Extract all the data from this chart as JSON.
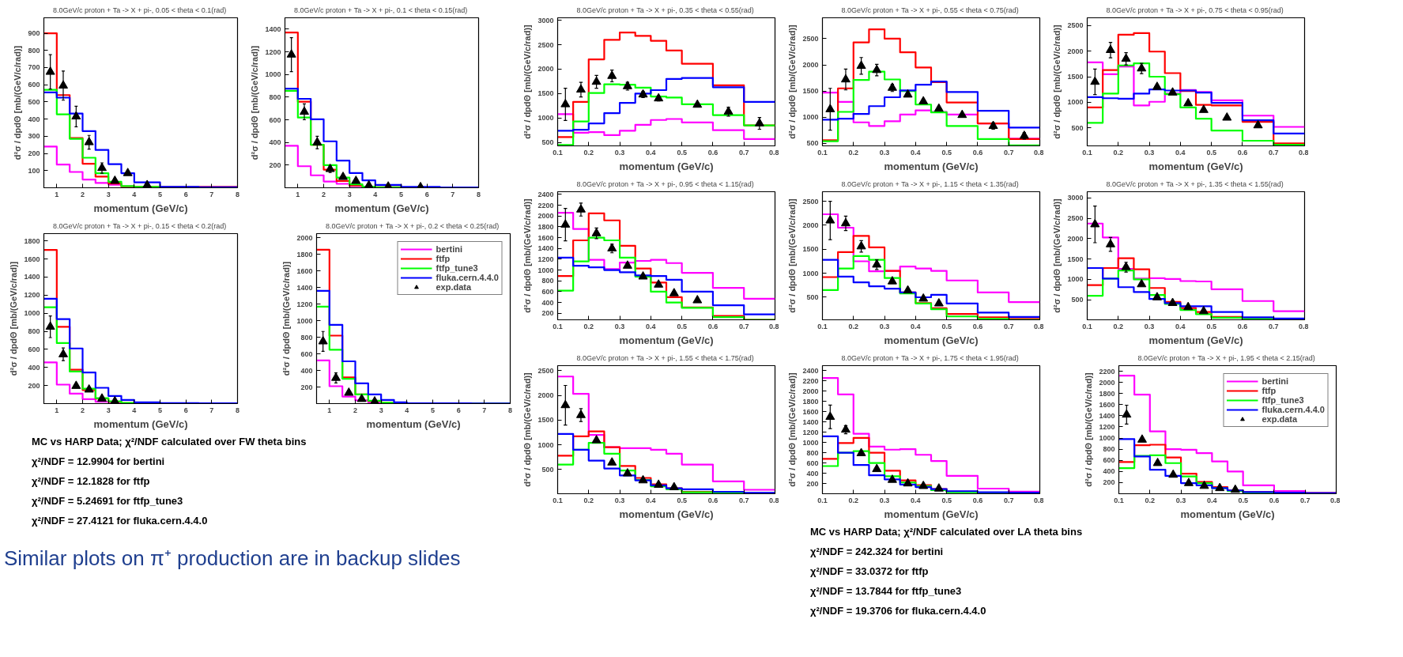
{
  "chart_data": [
    {
      "type": "histogram",
      "title": "8.0GeV/c  proton + Ta -> X + pi-, 0.05 < theta < 0.1(rad)",
      "xlabel": "momentum (GeV/c)",
      "ylabel": "d²σ / dpdΘ [mb/(GeV/c/rad)]",
      "bins": [
        0.5,
        1,
        1.5,
        2,
        2.5,
        3,
        3.5,
        4,
        5,
        6.5,
        8
      ],
      "xlim": [
        0.5,
        8
      ],
      "xticks": [
        1,
        2,
        3,
        4,
        5,
        6,
        7,
        8
      ],
      "ylim": [
        0,
        990
      ],
      "yticks": [
        100,
        200,
        300,
        400,
        500,
        600,
        700,
        800,
        900
      ],
      "series": [
        {
          "color": "#ff00ff",
          "values": [
            240,
            135,
            92,
            48,
            28,
            18,
            8,
            5,
            3,
            2
          ]
        },
        {
          "color": "#ff0000",
          "values": [
            900,
            540,
            290,
            140,
            65,
            25,
            8,
            5,
            5,
            5
          ]
        },
        {
          "color": "#00ff00",
          "values": [
            570,
            428,
            285,
            175,
            85,
            35,
            10,
            5,
            3,
            2
          ]
        },
        {
          "color": "#0000ff",
          "values": [
            555,
            525,
            432,
            330,
            220,
            138,
            85,
            32,
            5,
            3
          ]
        },
        {
          "type": "scatter",
          "marker": "triangle",
          "color": "#000000",
          "x": [
            0.75,
            1.25,
            1.75,
            2.25,
            2.75,
            3.25,
            3.75,
            4.5
          ],
          "values": [
            675,
            595,
            415,
            265,
            115,
            40,
            85,
            15
          ],
          "errors": [
            100,
            85,
            60,
            40,
            30,
            null,
            null,
            null
          ]
        }
      ]
    },
    {
      "type": "histogram",
      "title": "8.0GeV/c  proton + Ta -> X + pi-, 0.1 < theta < 0.15(rad)",
      "xlabel": "momentum (GeV/c)",
      "ylabel": "d²σ / dpdΘ [mb/(GeV/c/rad)]",
      "bins": [
        0.5,
        1,
        1.5,
        2,
        2.5,
        3,
        3.5,
        4,
        5,
        6.5,
        8
      ],
      "xlim": [
        0.5,
        8
      ],
      "xticks": [
        1,
        2,
        3,
        4,
        5,
        6,
        7,
        8
      ],
      "ylim": [
        0,
        1500
      ],
      "yticks": [
        200,
        400,
        600,
        800,
        1000,
        1200,
        1400
      ],
      "series": [
        {
          "color": "#ff00ff",
          "values": [
            370,
            190,
            110,
            55,
            35,
            15,
            8,
            5,
            3,
            2
          ]
        },
        {
          "color": "#ff0000",
          "values": [
            1370,
            760,
            380,
            160,
            60,
            20,
            8,
            5,
            3,
            2
          ]
        },
        {
          "color": "#00ff00",
          "values": [
            855,
            620,
            380,
            200,
            90,
            30,
            10,
            5,
            3,
            2
          ]
        },
        {
          "color": "#0000ff",
          "values": [
            875,
            785,
            605,
            410,
            240,
            130,
            65,
            25,
            8,
            3
          ]
        },
        {
          "type": "scatter",
          "marker": "triangle",
          "color": "#000000",
          "x": [
            0.75,
            1.25,
            1.75,
            2.25,
            2.75,
            3.25,
            3.75,
            4.5,
            5.75
          ],
          "values": [
            1175,
            670,
            400,
            165,
            95,
            60,
            20,
            10,
            5
          ],
          "errors": [
            150,
            70,
            55,
            30,
            null,
            null,
            null,
            null,
            null
          ]
        }
      ]
    },
    {
      "type": "histogram",
      "title": "8.0GeV/c  proton + Ta -> X + pi-, 0.15 < theta < 0.2(rad)",
      "xlabel": "momentum (GeV/c)",
      "ylabel": "d²σ / dpdΘ [mb/(GeV/c/rad)]",
      "bins": [
        0.5,
        1,
        1.5,
        2,
        2.5,
        3,
        3.5,
        4,
        5,
        6.5,
        8
      ],
      "xlim": [
        0.5,
        8
      ],
      "xticks": [
        1,
        2,
        3,
        4,
        5,
        6,
        7,
        8
      ],
      "ylim": [
        0,
        1880
      ],
      "yticks": [
        200,
        400,
        600,
        800,
        1000,
        1200,
        1400,
        1600,
        1800
      ],
      "series": [
        {
          "color": "#ff00ff",
          "values": [
            455,
            210,
            110,
            50,
            20,
            10,
            5,
            3,
            2,
            2
          ]
        },
        {
          "color": "#ff0000",
          "values": [
            1700,
            850,
            375,
            150,
            55,
            20,
            5,
            3,
            2,
            2
          ]
        },
        {
          "color": "#00ff00",
          "values": [
            1065,
            670,
            355,
            165,
            60,
            25,
            8,
            3,
            2,
            2
          ]
        },
        {
          "color": "#0000ff",
          "values": [
            1160,
            935,
            610,
            345,
            175,
            85,
            40,
            15,
            5,
            3
          ]
        },
        {
          "type": "scatter",
          "marker": "triangle",
          "color": "#000000",
          "x": [
            0.75,
            1.25,
            1.75,
            2.25,
            2.75,
            3.25
          ],
          "values": [
            850,
            545,
            195,
            155,
            55,
            25
          ],
          "errors": [
            120,
            70,
            null,
            null,
            null,
            null
          ]
        }
      ],
      "annotations": [
        "MC vs HARP Data; χ²/NDF calculated over FW theta bins",
        "χ²/NDF = 12.9904 for bertini",
        "χ²/NDF = 12.1828 for ftfp",
        "χ²/NDF = 5.24691 for ftfp_tune3",
        "χ²/NDF = 27.4121 for fluka.cern.4.4.0",
        "Similar plots on π⁺ production are in backup slides"
      ]
    },
    {
      "type": "histogram",
      "title": "8.0GeV/c  proton + Ta -> X + pi-, 0.2 < theta < 0.25(rad)",
      "xlabel": "momentum (GeV/c)",
      "ylabel": "d²σ / dpdΘ [mb/(GeV/c/rad)]",
      "bins": [
        0.5,
        1,
        1.5,
        2,
        2.5,
        3,
        3.5,
        4,
        5,
        6.5,
        8
      ],
      "xlim": [
        0.5,
        8
      ],
      "xticks": [
        1,
        2,
        3,
        4,
        5,
        6,
        7,
        8
      ],
      "ylim": [
        0,
        2050
      ],
      "yticks": [
        200,
        400,
        600,
        800,
        1000,
        1200,
        1400,
        1600,
        1800,
        2000
      ],
      "legend": "top right",
      "series": [
        {
          "name": "bertini",
          "color": "#ff00ff",
          "values": [
            520,
            210,
            85,
            40,
            15,
            8,
            5,
            3,
            2,
            2
          ]
        },
        {
          "name": "ftfp",
          "color": "#ff0000",
          "values": [
            1855,
            820,
            315,
            110,
            30,
            10,
            5,
            3,
            2,
            2
          ]
        },
        {
          "name": "ftfp_tune3",
          "color": "#00ff00",
          "values": [
            1170,
            650,
            300,
            110,
            35,
            12,
            5,
            3,
            2,
            2
          ]
        },
        {
          "name": "fluka.cern.4.4.0",
          "color": "#0000ff",
          "values": [
            1360,
            950,
            510,
            245,
            110,
            45,
            15,
            5,
            3,
            2
          ]
        },
        {
          "name": "exp.data",
          "type": "scatter",
          "marker": "triangle",
          "color": "#000000",
          "x": [
            0.75,
            1.25,
            1.75,
            2.25,
            2.75
          ],
          "values": [
            750,
            310,
            130,
            55,
            25
          ],
          "errors": [
            120,
            60,
            null,
            null,
            null
          ]
        }
      ]
    },
    {
      "type": "histogram",
      "title": "8.0GeV/c  proton + Ta -> X + pi-, 0.35 < theta < 0.55(rad)",
      "xlabel": "momentum (GeV/c)",
      "ylabel": "d²σ / dpdΘ [mb/(GeV/c/rad)]",
      "bins": [
        0.1,
        0.15,
        0.2,
        0.25,
        0.3,
        0.35,
        0.4,
        0.45,
        0.5,
        0.6,
        0.7,
        0.8
      ],
      "xlim": [
        0.1,
        0.8
      ],
      "xticks": [
        0.1,
        0.2,
        0.3,
        0.4,
        0.5,
        0.6,
        0.7,
        0.8
      ],
      "ylim": [
        430,
        3050
      ],
      "yticks": [
        500,
        1000,
        1500,
        2000,
        2500,
        3000
      ],
      "series": [
        {
          "color": "#ff00ff",
          "values": [
            1080,
            700,
            710,
            650,
            740,
            860,
            960,
            980,
            910,
            750,
            570
          ]
        },
        {
          "color": "#ff0000",
          "values": [
            610,
            1330,
            2200,
            2600,
            2750,
            2680,
            2580,
            2380,
            2110,
            1670,
            850
          ]
        },
        {
          "color": "#00ff00",
          "values": [
            450,
            930,
            1510,
            1690,
            1680,
            1620,
            1440,
            1420,
            1280,
            1060,
            850
          ]
        },
        {
          "color": "#0000ff",
          "values": [
            740,
            760,
            890,
            1100,
            1310,
            1500,
            1570,
            1800,
            1820,
            1630,
            1330
          ]
        },
        {
          "type": "scatter",
          "marker": "triangle",
          "color": "#000000",
          "x": [
            0.125,
            0.175,
            0.225,
            0.275,
            0.325,
            0.375,
            0.425,
            0.475,
            0.55,
            0.65,
            0.75
          ],
          "values": [
            1280,
            1580,
            1740,
            1860,
            1650,
            1480,
            1400,
            null,
            1270,
            1130,
            890
          ],
          "errors": [
            330,
            150,
            130,
            120,
            80,
            60,
            50,
            null,
            null,
            90,
            120
          ]
        }
      ]
    },
    {
      "type": "histogram",
      "title": "8.0GeV/c  proton + Ta -> X + pi-, 0.55 < theta < 0.75(rad)",
      "xlabel": "momentum (GeV/c)",
      "ylabel": "d²σ / dpdΘ [mb/(GeV/c/rad)]",
      "bins": [
        0.1,
        0.15,
        0.2,
        0.25,
        0.3,
        0.35,
        0.4,
        0.45,
        0.5,
        0.6,
        0.7,
        0.8
      ],
      "xlim": [
        0.1,
        0.8
      ],
      "xticks": [
        0.1,
        0.2,
        0.3,
        0.4,
        0.5,
        0.6,
        0.7,
        0.8
      ],
      "ylim": [
        450,
        2900
      ],
      "yticks": [
        500,
        1000,
        1500,
        2000,
        2500
      ],
      "series": [
        {
          "color": "#ff00ff",
          "values": [
            1470,
            1290,
            900,
            830,
            920,
            1050,
            1130,
            1100,
            1050,
            880,
            590
          ]
        },
        {
          "color": "#ff0000",
          "values": [
            560,
            1550,
            2430,
            2680,
            2500,
            2240,
            1950,
            1670,
            1280,
            880,
            580
          ]
        },
        {
          "color": "#00ff00",
          "values": [
            540,
            1100,
            1710,
            1870,
            1720,
            1500,
            1240,
            1090,
            830,
            580,
            460
          ]
        },
        {
          "color": "#0000ff",
          "values": [
            950,
            970,
            1060,
            1210,
            1380,
            1510,
            1620,
            1680,
            1480,
            1120,
            800
          ]
        },
        {
          "type": "scatter",
          "marker": "triangle",
          "color": "#000000",
          "x": [
            0.125,
            0.175,
            0.225,
            0.275,
            0.325,
            0.375,
            0.425,
            0.475,
            0.55,
            0.65,
            0.75
          ],
          "values": [
            1150,
            1720,
            1980,
            1900,
            1560,
            1430,
            1300,
            1160,
            1040,
            830,
            640
          ],
          "errors": [
            400,
            200,
            160,
            110,
            70,
            null,
            null,
            null,
            null,
            60,
            60
          ]
        }
      ]
    },
    {
      "type": "histogram",
      "title": "8.0GeV/c  proton + Ta -> X + pi-, 0.75 < theta < 0.95(rad)",
      "xlabel": "momentum (GeV/c)",
      "ylabel": "d²σ / dpdΘ [mb/(GeV/c/rad)]",
      "bins": [
        0.1,
        0.15,
        0.2,
        0.25,
        0.3,
        0.35,
        0.4,
        0.45,
        0.5,
        0.6,
        0.7,
        0.8
      ],
      "xlim": [
        0.1,
        0.8
      ],
      "xticks": [
        0.1,
        0.2,
        0.3,
        0.4,
        0.5,
        0.6,
        0.7,
        0.8
      ],
      "ylim": [
        150,
        2650
      ],
      "yticks": [
        500,
        1000,
        1500,
        2000,
        2500
      ],
      "series": [
        {
          "color": "#ff00ff",
          "values": [
            1780,
            1550,
            1700,
            940,
            1010,
            1170,
            1240,
            1200,
            1040,
            740,
            520
          ]
        },
        {
          "color": "#ff0000",
          "values": [
            900,
            1630,
            2320,
            2350,
            1990,
            1570,
            1220,
            950,
            940,
            620,
            200
          ]
        },
        {
          "color": "#00ff00",
          "values": [
            600,
            1170,
            1720,
            1760,
            1500,
            1160,
            900,
            680,
            450,
            250,
            170
          ]
        },
        {
          "color": "#0000ff",
          "values": [
            1100,
            1080,
            1070,
            1170,
            1250,
            1230,
            1230,
            1190,
            990,
            650,
            390
          ]
        },
        {
          "type": "scatter",
          "marker": "triangle",
          "color": "#000000",
          "x": [
            0.125,
            0.175,
            0.225,
            0.275,
            0.325,
            0.375,
            0.425,
            0.475,
            0.55,
            0.65
          ],
          "values": [
            1400,
            2020,
            1850,
            1660,
            1300,
            1190,
            980,
            850,
            700,
            550
          ],
          "errors": [
            250,
            150,
            120,
            100,
            null,
            null,
            null,
            null,
            null,
            null
          ]
        }
      ]
    },
    {
      "type": "histogram",
      "title": "8.0GeV/c  proton + Ta -> X + pi-, 0.95 < theta < 1.15(rad)",
      "xlabel": "momentum (GeV/c)",
      "ylabel": "d²σ / dpdΘ [mb/(GeV/c/rad)]",
      "bins": [
        0.1,
        0.15,
        0.2,
        0.25,
        0.3,
        0.35,
        0.4,
        0.45,
        0.5,
        0.6,
        0.7,
        0.8
      ],
      "xlim": [
        0.1,
        0.8
      ],
      "xticks": [
        0.1,
        0.2,
        0.3,
        0.4,
        0.5,
        0.6,
        0.7,
        0.8
      ],
      "ylim": [
        80,
        2450
      ],
      "yticks": [
        200,
        400,
        600,
        800,
        1000,
        1200,
        1400,
        1600,
        1800,
        2000,
        2200,
        2400
      ],
      "series": [
        {
          "color": "#ff00ff",
          "values": [
            2060,
            1760,
            1190,
            1020,
            1140,
            1170,
            1190,
            1130,
            950,
            670,
            470
          ]
        },
        {
          "color": "#ff0000",
          "values": [
            890,
            1550,
            2050,
            1920,
            1450,
            1030,
            770,
            500,
            310,
            150,
            80
          ]
        },
        {
          "color": "#00ff00",
          "values": [
            620,
            1160,
            1600,
            1550,
            1230,
            880,
            600,
            400,
            300,
            130,
            80
          ]
        },
        {
          "color": "#0000ff",
          "values": [
            1230,
            1080,
            1050,
            1000,
            960,
            900,
            890,
            820,
            600,
            350,
            180
          ]
        },
        {
          "type": "scatter",
          "marker": "triangle",
          "color": "#000000",
          "x": [
            0.125,
            0.175,
            0.225,
            0.275,
            0.325,
            0.375,
            0.425,
            0.475,
            0.55
          ],
          "values": [
            1840,
            2120,
            1680,
            1400,
            1080,
            880,
            730,
            570,
            440
          ],
          "errors": [
            300,
            120,
            100,
            80,
            null,
            null,
            null,
            null,
            null
          ]
        }
      ]
    },
    {
      "type": "histogram",
      "title": "8.0GeV/c  proton + Ta -> X + pi-, 1.15 < theta < 1.35(rad)",
      "xlabel": "momentum (GeV/c)",
      "ylabel": "d²σ / dpdΘ [mb/(GeV/c/rad)]",
      "bins": [
        0.1,
        0.15,
        0.2,
        0.25,
        0.3,
        0.35,
        0.4,
        0.45,
        0.5,
        0.6,
        0.7,
        0.8
      ],
      "xlim": [
        0.1,
        0.8
      ],
      "xticks": [
        0.1,
        0.2,
        0.3,
        0.4,
        0.5,
        0.6,
        0.7,
        0.8
      ],
      "ylim": [
        30,
        2700
      ],
      "yticks": [
        500,
        1000,
        1500,
        2000,
        2500
      ],
      "series": [
        {
          "color": "#ff00ff",
          "values": [
            2230,
            1950,
            1250,
            1040,
            1050,
            1140,
            1100,
            1050,
            850,
            600,
            400
          ]
        },
        {
          "color": "#ff0000",
          "values": [
            920,
            1440,
            1780,
            1540,
            1050,
            600,
            380,
            270,
            150,
            80,
            50
          ]
        },
        {
          "color": "#00ff00",
          "values": [
            650,
            1100,
            1360,
            1280,
            900,
            580,
            370,
            250,
            100,
            50,
            30
          ]
        },
        {
          "color": "#0000ff",
          "values": [
            1280,
            930,
            810,
            730,
            680,
            600,
            500,
            550,
            370,
            180,
            90
          ]
        },
        {
          "type": "scatter",
          "marker": "triangle",
          "color": "#000000",
          "x": [
            0.125,
            0.175,
            0.225,
            0.275,
            0.325,
            0.375,
            0.425,
            0.475
          ],
          "values": [
            2100,
            2040,
            1560,
            1180,
            830,
            640,
            470,
            370
          ],
          "errors": [
            400,
            150,
            120,
            100,
            null,
            null,
            null,
            null
          ]
        }
      ]
    },
    {
      "type": "histogram",
      "title": "8.0GeV/c  proton + Ta -> X + pi-, 1.35 < theta < 1.55(rad)",
      "xlabel": "momentum (GeV/c)",
      "ylabel": "d²σ / dpdΘ [mb/(GeV/c/rad)]",
      "bins": [
        0.1,
        0.15,
        0.2,
        0.25,
        0.3,
        0.35,
        0.4,
        0.45,
        0.5,
        0.6,
        0.7,
        0.8
      ],
      "xlim": [
        0.1,
        0.8
      ],
      "xticks": [
        0.1,
        0.2,
        0.3,
        0.4,
        0.5,
        0.6,
        0.7,
        0.8
      ],
      "ylim": [
        10,
        3150
      ],
      "yticks": [
        500,
        1000,
        1500,
        2000,
        2500,
        3000
      ],
      "series": [
        {
          "color": "#ff00ff",
          "values": [
            2370,
            2030,
            1260,
            1020,
            1030,
            1010,
            960,
            950,
            760,
            470,
            220
          ]
        },
        {
          "color": "#ff0000",
          "values": [
            860,
            1280,
            1520,
            1250,
            790,
            450,
            300,
            200,
            80,
            40,
            20
          ]
        },
        {
          "color": "#00ff00",
          "values": [
            600,
            1020,
            1220,
            1000,
            620,
            400,
            250,
            150,
            60,
            30,
            20
          ]
        },
        {
          "color": "#0000ff",
          "values": [
            1280,
            1020,
            810,
            690,
            520,
            420,
            340,
            340,
            200,
            70,
            40
          ]
        },
        {
          "type": "scatter",
          "marker": "triangle",
          "color": "#000000",
          "x": [
            0.125,
            0.175,
            0.225,
            0.275,
            0.325,
            0.375,
            0.425,
            0.475
          ],
          "values": [
            2350,
            1860,
            1300,
            880,
            560,
            420,
            320,
            220
          ],
          "errors": [
            450,
            170,
            120,
            null,
            null,
            null,
            null,
            null
          ]
        }
      ]
    },
    {
      "type": "histogram",
      "title": "8.0GeV/c  proton + Ta -> X + pi-, 1.55 < theta < 1.75(rad)",
      "xlabel": "momentum (GeV/c)",
      "ylabel": "d²σ / dpdΘ [mb/(GeV/c/rad)]",
      "bins": [
        0.1,
        0.15,
        0.2,
        0.25,
        0.3,
        0.35,
        0.4,
        0.45,
        0.5,
        0.6,
        0.7,
        0.8
      ],
      "xlim": [
        0.1,
        0.8
      ],
      "xticks": [
        0.1,
        0.2,
        0.3,
        0.4,
        0.5,
        0.6,
        0.7,
        0.8
      ],
      "ylim": [
        10,
        2600
      ],
      "yticks": [
        500,
        1000,
        1500,
        2000,
        2500
      ],
      "series": [
        {
          "color": "#ff00ff",
          "values": [
            2380,
            2030,
            1200,
            950,
            930,
            930,
            900,
            820,
            600,
            260,
            90
          ]
        },
        {
          "color": "#ff0000",
          "values": [
            780,
            1170,
            1270,
            950,
            570,
            330,
            200,
            120,
            50,
            30,
            20
          ]
        },
        {
          "color": "#00ff00",
          "values": [
            600,
            900,
            1040,
            820,
            480,
            290,
            160,
            100,
            40,
            20,
            20
          ]
        },
        {
          "color": "#0000ff",
          "values": [
            1220,
            900,
            680,
            520,
            380,
            280,
            180,
            120,
            100,
            50,
            30
          ]
        },
        {
          "type": "scatter",
          "marker": "triangle",
          "color": "#000000",
          "x": [
            0.125,
            0.175,
            0.225,
            0.275,
            0.325,
            0.375,
            0.425,
            0.475
          ],
          "values": [
            1800,
            1600,
            1090,
            640,
            420,
            280,
            190,
            140
          ],
          "errors": [
            400,
            130,
            null,
            null,
            null,
            null,
            null,
            null
          ]
        }
      ]
    },
    {
      "type": "histogram",
      "title": "8.0GeV/c  proton + Ta -> X + pi-, 1.75 < theta < 1.95(rad)",
      "xlabel": "momentum (GeV/c)",
      "ylabel": "d²σ / dpdΘ [mb/(GeV/c/rad)]",
      "bins": [
        0.1,
        0.15,
        0.2,
        0.25,
        0.3,
        0.35,
        0.4,
        0.45,
        0.5,
        0.6,
        0.7,
        0.8
      ],
      "xlim": [
        0.1,
        0.8
      ],
      "xticks": [
        0.1,
        0.2,
        0.3,
        0.4,
        0.5,
        0.6,
        0.7,
        0.8
      ],
      "ylim": [
        0,
        2500
      ],
      "yticks": [
        200,
        400,
        600,
        800,
        1000,
        1200,
        1400,
        1600,
        1800,
        2000,
        2200,
        2400
      ],
      "series": [
        {
          "color": "#ff00ff",
          "values": [
            2260,
            1940,
            1170,
            920,
            860,
            870,
            760,
            640,
            350,
            100,
            40
          ]
        },
        {
          "color": "#ff0000",
          "values": [
            680,
            990,
            1090,
            800,
            450,
            260,
            170,
            90,
            40,
            20,
            10
          ]
        },
        {
          "color": "#00ff00",
          "values": [
            540,
            800,
            830,
            600,
            340,
            220,
            150,
            70,
            30,
            20,
            10
          ]
        },
        {
          "color": "#0000ff",
          "values": [
            1120,
            800,
            560,
            360,
            280,
            180,
            130,
            90,
            50,
            30,
            20
          ]
        },
        {
          "type": "scatter",
          "marker": "triangle",
          "color": "#000000",
          "x": [
            0.125,
            0.175,
            0.225,
            0.275,
            0.325,
            0.375,
            0.425,
            0.475
          ],
          "values": [
            1500,
            1250,
            790,
            480,
            270,
            200,
            150,
            100
          ],
          "errors": [
            230,
            80,
            null,
            null,
            null,
            null,
            null,
            null
          ]
        }
      ],
      "annotations": [
        "MC vs HARP Data; χ²/NDF calculated over LA theta bins",
        "χ²/NDF = 242.324 for bertini",
        "χ²/NDF = 33.0372 for ftfp",
        "χ²/NDF = 13.7844 for ftfp_tune3",
        "χ²/NDF = 19.3706 for fluka.cern.4.4.0"
      ]
    },
    {
      "type": "histogram",
      "title": "8.0GeV/c  proton + Ta -> X + pi-, 1.95 < theta < 2.15(rad)",
      "xlabel": "momentum (GeV/c)",
      "ylabel": "d²σ / dpdΘ [mb/(GeV/c/rad)]",
      "bins": [
        0.1,
        0.15,
        0.2,
        0.25,
        0.3,
        0.35,
        0.4,
        0.45,
        0.5,
        0.6,
        0.7,
        0.8
      ],
      "xlim": [
        0.1,
        0.8
      ],
      "xticks": [
        0.1,
        0.2,
        0.3,
        0.4,
        0.5,
        0.6,
        0.7,
        0.8
      ],
      "ylim": [
        0,
        2300
      ],
      "yticks": [
        200,
        400,
        600,
        800,
        1000,
        1200,
        1400,
        1600,
        1800,
        2000,
        2200
      ],
      "legend": "top right",
      "series": [
        {
          "name": "bertini",
          "color": "#ff00ff",
          "values": [
            2120,
            1780,
            1120,
            800,
            790,
            730,
            580,
            400,
            150,
            50,
            20
          ]
        },
        {
          "name": "ftfp",
          "color": "#ff0000",
          "values": [
            570,
            870,
            880,
            650,
            360,
            210,
            120,
            60,
            30,
            20,
            10
          ]
        },
        {
          "name": "ftfp_tune3",
          "color": "#00ff00",
          "values": [
            460,
            680,
            690,
            550,
            310,
            190,
            100,
            50,
            20,
            10,
            10
          ]
        },
        {
          "name": "fluka.cern.4.4.0",
          "color": "#0000ff",
          "values": [
            980,
            670,
            430,
            320,
            190,
            150,
            100,
            60,
            30,
            20,
            10
          ]
        },
        {
          "name": "exp.data",
          "type": "scatter",
          "marker": "triangle",
          "color": "#000000",
          "x": [
            0.125,
            0.175,
            0.225,
            0.275,
            0.325,
            0.375,
            0.425,
            0.475
          ],
          "values": [
            1420,
            970,
            550,
            340,
            190,
            140,
            100,
            70
          ],
          "errors": [
            170,
            null,
            null,
            null,
            null,
            null,
            null,
            null
          ]
        }
      ]
    }
  ]
}
